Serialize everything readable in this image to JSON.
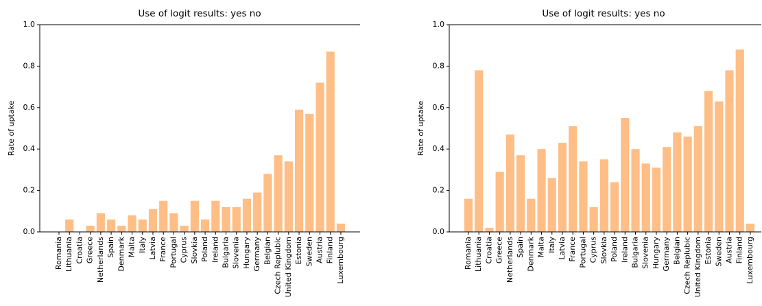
{
  "chart_data": [
    {
      "type": "bar",
      "title": "Use of logit results: yes no",
      "ylabel": "Rate of uptake",
      "categories": [
        "Romania",
        "Lithuania",
        "Croatia",
        "Greece",
        "Netherlands",
        "Spain",
        "Denmark",
        "Malta",
        "Italy",
        "Latvia",
        "France",
        "Portugal",
        "Cyprus",
        "Slovkia",
        "Poland",
        "Ireland",
        "Bulgaria",
        "Slovenia",
        "Hungary",
        "Germany",
        "Belgian",
        "Czech Replubic",
        "United Kingdom",
        "Estonia",
        "Sweden",
        "Austria",
        "Finland",
        "Luxembourg"
      ],
      "values": [
        0,
        0.06,
        0,
        0.03,
        0.09,
        0.06,
        0.03,
        0.08,
        0.06,
        0.11,
        0.15,
        0.09,
        0.03,
        0.15,
        0.06,
        0.15,
        0.12,
        0.12,
        0.16,
        0.19,
        0.28,
        0.37,
        0.34,
        0.59,
        0.57,
        0.72,
        0.87,
        0.04
      ],
      "color": "#ffbe86",
      "ylim": [
        0,
        1
      ],
      "yticks": [
        {
          "value": 0,
          "label": "0.0"
        },
        0.2,
        0.4,
        0.6,
        0.8,
        {
          "value": 1,
          "label": "1.0"
        }
      ]
    },
    {
      "type": "bar",
      "title": "Use of logit results: yes no",
      "ylabel": "Rate of uptake",
      "categories": [
        "Romania",
        "Lithuania",
        "Croatia",
        "Greece",
        "Netherlands",
        "Spain",
        "Denmark",
        "Malta",
        "Italy",
        "Latvia",
        "France",
        "Portugal",
        "Cyprus",
        "Slovkia",
        "Poland",
        "Ireland",
        "Bulgaria",
        "Slovenia",
        "Hungary",
        "Germany",
        "Belgian",
        "Czech Replubic",
        "United Kingdom",
        "Estonia",
        "Sweden",
        "Austria",
        "Finland",
        "Luxembourg"
      ],
      "values": [
        0.16,
        0.78,
        0.02,
        0.29,
        0.47,
        0.37,
        0.16,
        0.4,
        0.26,
        0.43,
        0.51,
        0.34,
        0.12,
        0.35,
        0.24,
        0.55,
        0.4,
        0.33,
        0.31,
        0.41,
        0.48,
        0.46,
        0.51,
        0.68,
        0.63,
        0.78,
        0.88,
        0.04
      ],
      "color": "#ffbe86",
      "ylim": [
        0,
        1
      ],
      "yticks": [
        {
          "value": 0,
          "label": "0.0"
        },
        0.2,
        0.4,
        0.6,
        0.8,
        {
          "value": 1,
          "label": "1.0"
        }
      ]
    }
  ]
}
